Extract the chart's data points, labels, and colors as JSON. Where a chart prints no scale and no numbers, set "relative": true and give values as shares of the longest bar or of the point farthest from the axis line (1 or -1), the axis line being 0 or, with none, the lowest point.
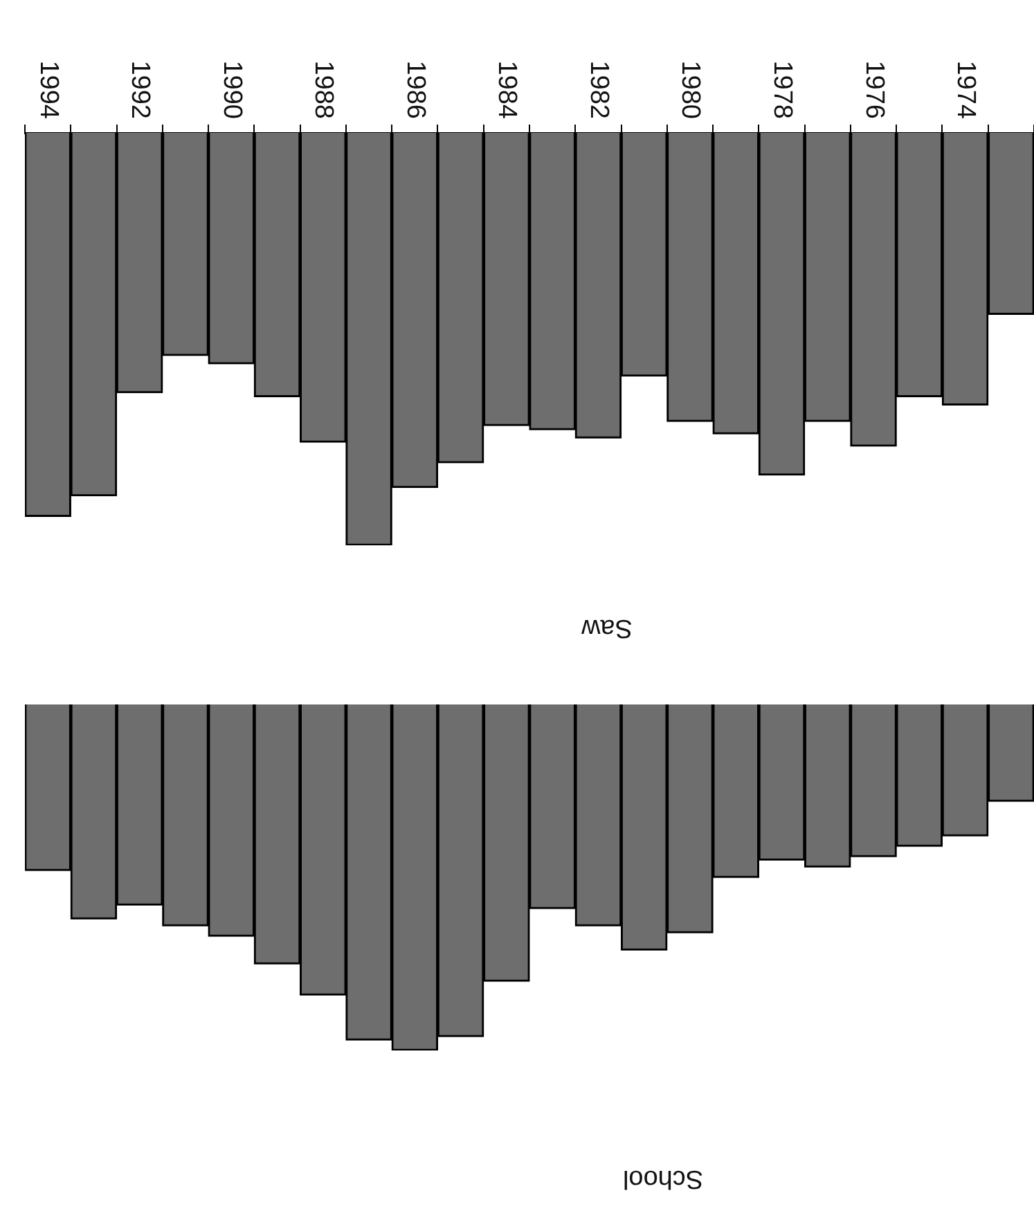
{
  "chart_data": [
    {
      "type": "bar",
      "title": "Saw",
      "relative": true,
      "tick_labels": "x",
      "color": "#6e6e6e",
      "categories": [
        "1994",
        null,
        "1992",
        null,
        "1990",
        null,
        "1988",
        null,
        "1986",
        null,
        "1984",
        null,
        "1982",
        null,
        "1980",
        null,
        "1978",
        null,
        "1976",
        null,
        "1974",
        null
      ],
      "values": [
        -0.93,
        -0.88,
        -0.63,
        -0.54,
        -0.56,
        -0.64,
        -0.75,
        -1,
        -0.86,
        -0.8,
        -0.71,
        -0.72,
        -0.74,
        -0.59,
        -0.7,
        -0.73,
        -0.83,
        -0.7,
        -0.76,
        -0.64,
        -0.66,
        -0.44
      ]
    },
    {
      "type": "bar",
      "title": "School",
      "relative": true,
      "tick_labels": false,
      "color": "#6e6e6e",
      "categories": [
        null,
        null,
        null,
        null,
        null,
        null,
        null,
        null,
        null,
        null,
        null,
        null,
        null,
        null,
        null,
        null,
        null,
        null,
        null,
        null,
        null,
        null
      ],
      "values": [
        -0.48,
        -0.62,
        -0.58,
        -0.64,
        -0.67,
        -0.75,
        -0.84,
        -0.97,
        -1,
        -0.96,
        -0.8,
        -0.59,
        -0.64,
        -0.71,
        -0.66,
        -0.5,
        -0.45,
        -0.47,
        -0.44,
        -0.41,
        -0.38,
        -0.28
      ]
    }
  ]
}
